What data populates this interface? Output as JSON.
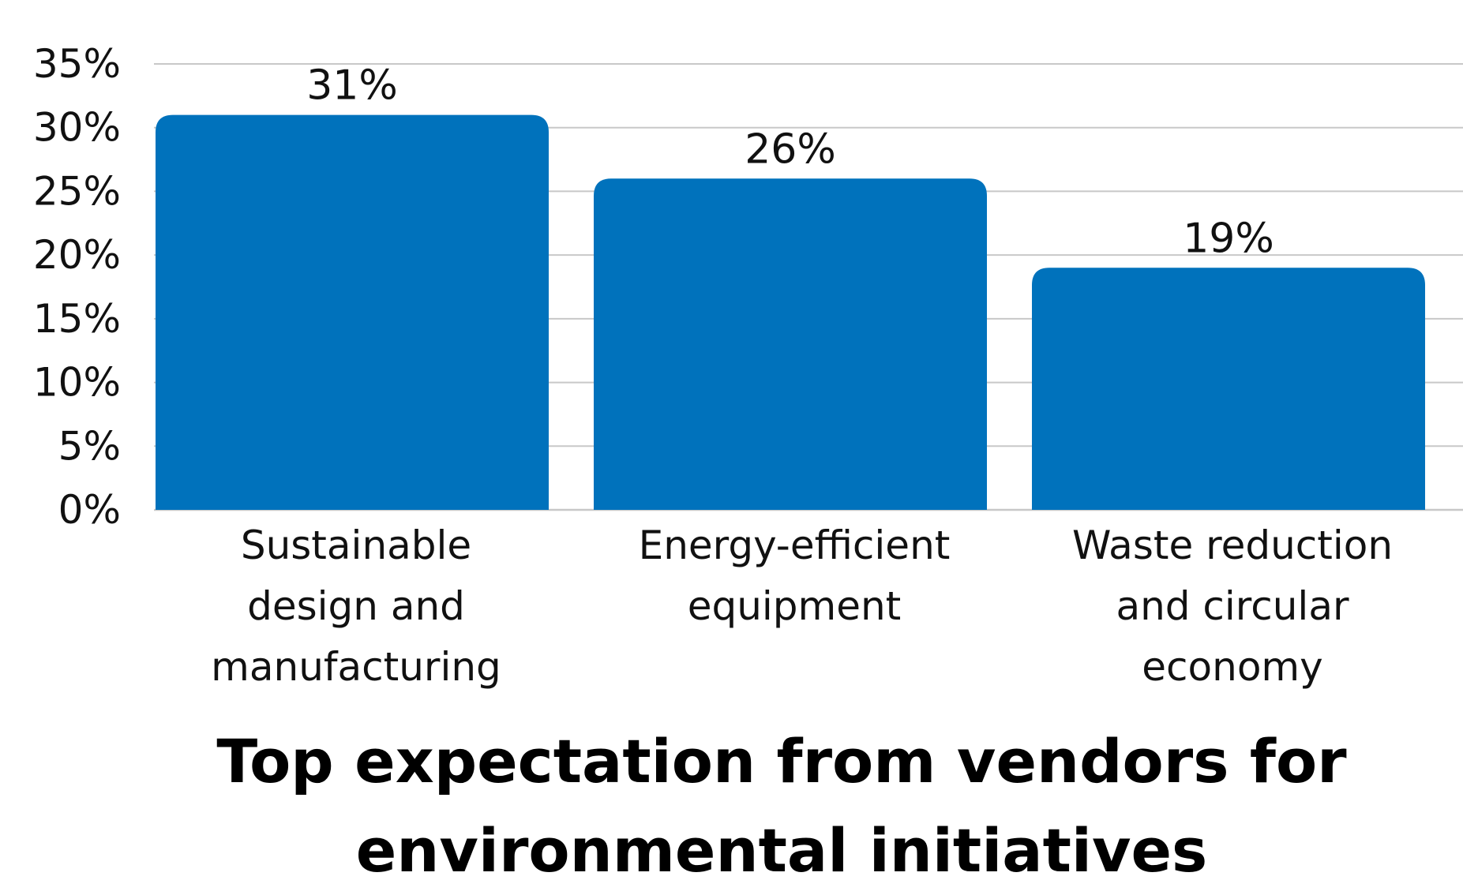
{
  "chart_data": {
    "type": "bar",
    "title": "Top expectation from vendors for environmental initiatives",
    "categories": [
      [
        "Sustainable",
        "design and",
        "manufacturing"
      ],
      [
        "Energy-efficient",
        "equipment"
      ],
      [
        "Waste reduction",
        "and circular",
        "economy"
      ]
    ],
    "values": [
      31,
      26,
      19
    ],
    "data_labels": [
      "31%",
      "26%",
      "19%"
    ],
    "xlabel": "",
    "ylabel": "",
    "ylim": [
      0,
      35
    ],
    "y_ticks": [
      0,
      5,
      10,
      15,
      20,
      25,
      30,
      35
    ],
    "y_tick_labels": [
      "0%",
      "5%",
      "10%",
      "15%",
      "20%",
      "25%",
      "30%",
      "35%"
    ],
    "grid": true,
    "bar_color": "#0072BC",
    "grid_color": "#C8C8C8"
  }
}
